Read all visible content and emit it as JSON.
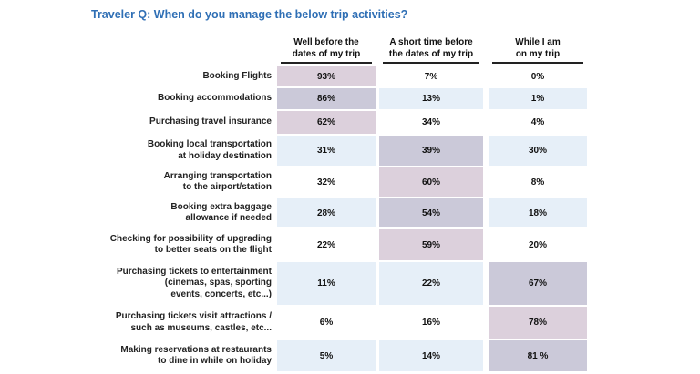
{
  "title": "Traveler Q: When do you manage the below trip activities?",
  "colors": {
    "title": "#2f6fb5",
    "light_blue": "#e6eff8",
    "mauve": "#dcd0dc",
    "slate": "#cbc9d9",
    "white": "#ffffff"
  },
  "chart_data": {
    "type": "table",
    "title": "Traveler Q: When do you manage the below trip activities?",
    "columns": [
      "Well before the\ndates of my trip",
      "A short time before\nthe dates of my trip",
      "While I am\non my trip"
    ],
    "rows": [
      {
        "label": "Booking Flights",
        "values": [
          "93%",
          "7%",
          "0%"
        ],
        "shade": [
          "mauve",
          "white",
          "white"
        ]
      },
      {
        "label": "Booking accommodations",
        "values": [
          "86%",
          "13%",
          "1%"
        ],
        "shade": [
          "slate",
          "light_blue",
          "light_blue"
        ]
      },
      {
        "label": "Purchasing travel insurance",
        "values": [
          "62%",
          "34%",
          "4%"
        ],
        "shade": [
          "mauve",
          "white",
          "white"
        ]
      },
      {
        "label": "Booking local transportation\nat holiday destination",
        "values": [
          "31%",
          "39%",
          "30%"
        ],
        "shade": [
          "light_blue",
          "slate",
          "light_blue"
        ]
      },
      {
        "label": "Arranging transportation\nto the airport/station",
        "values": [
          "32%",
          "60%",
          "8%"
        ],
        "shade": [
          "white",
          "mauve",
          "white"
        ]
      },
      {
        "label": "Booking extra baggage\nallowance if needed",
        "values": [
          "28%",
          "54%",
          "18%"
        ],
        "shade": [
          "light_blue",
          "slate",
          "light_blue"
        ]
      },
      {
        "label": "Checking for possibility of upgrading\nto better seats on the flight",
        "values": [
          "22%",
          "59%",
          "20%"
        ],
        "shade": [
          "white",
          "mauve",
          "white"
        ]
      },
      {
        "label": "Purchasing tickets to entertainment\n(cinemas, spas, sporting\nevents, concerts, etc...)",
        "values": [
          "11%",
          "22%",
          "67%"
        ],
        "shade": [
          "light_blue",
          "light_blue",
          "slate"
        ]
      },
      {
        "label": "Purchasing tickets visit attractions /\nsuch as museums, castles, etc...",
        "values": [
          "6%",
          "16%",
          "78%"
        ],
        "shade": [
          "white",
          "white",
          "mauve"
        ]
      },
      {
        "label": "Making reservations at restaurants\nto dine in while on holiday",
        "values": [
          "5%",
          "14%",
          "81 %"
        ],
        "shade": [
          "light_blue",
          "light_blue",
          "slate"
        ]
      }
    ]
  }
}
